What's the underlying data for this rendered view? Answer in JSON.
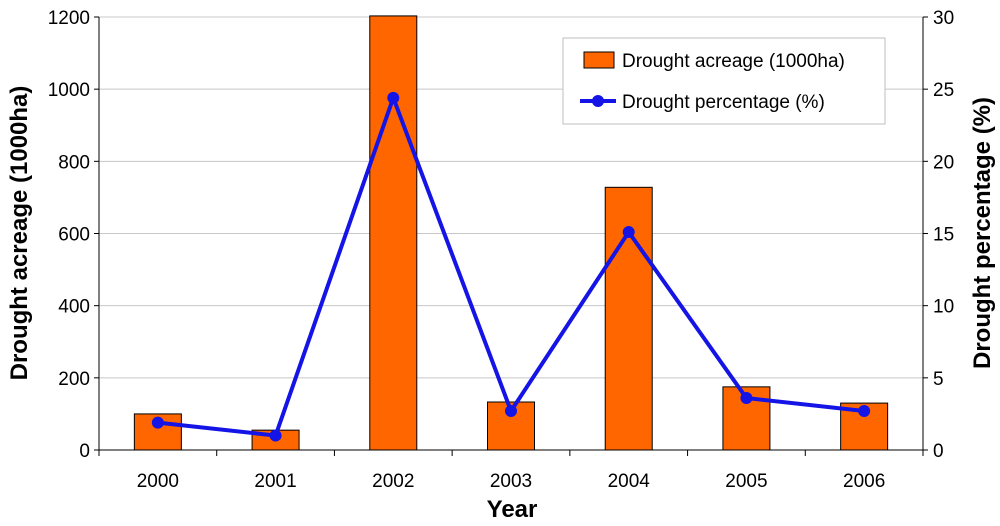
{
  "chart_data": {
    "type": "bar",
    "categories": [
      "2000",
      "2001",
      "2002",
      "2003",
      "2004",
      "2005",
      "2006"
    ],
    "series": [
      {
        "name": "Drought acreage (1000ha)",
        "type": "bar",
        "axis": "left",
        "values": [
          100,
          55,
          1203,
          133,
          728,
          175,
          130
        ],
        "color": "#ff6600"
      },
      {
        "name": "Drought percentage (%)",
        "type": "line",
        "axis": "right",
        "values": [
          1.9,
          1.0,
          24.4,
          2.7,
          15.1,
          3.6,
          2.7
        ],
        "color": "#1414e6"
      }
    ],
    "xlabel": "Year",
    "ylabel": "Drought acreage (1000ha)",
    "y2label": "Drought percentage (%)",
    "ylim": [
      0,
      1200
    ],
    "y2lim": [
      0,
      30
    ],
    "yticks": [
      "0",
      "200",
      "400",
      "600",
      "800",
      "1000",
      "1200"
    ],
    "y2ticks": [
      "0",
      "5",
      "10",
      "15",
      "20",
      "25",
      "30"
    ],
    "grid": true,
    "legend_position": "top-right"
  }
}
